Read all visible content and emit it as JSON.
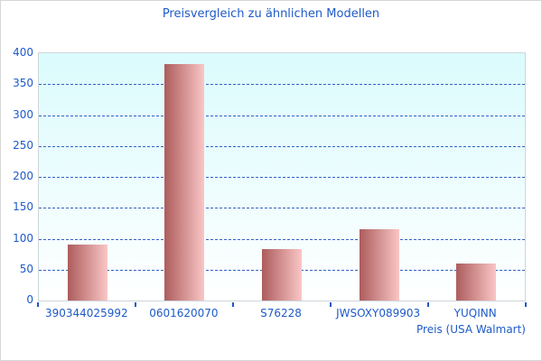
{
  "title": "Preisvergleich zu ähnlichen Modellen",
  "chart_data": {
    "type": "bar",
    "categories": [
      "390344025992",
      "0601620070",
      "S76228",
      "JWSOXY089903",
      "YUQINN"
    ],
    "values": [
      90,
      383,
      83,
      115,
      60
    ],
    "title": "Preisvergleich zu ähnlichen Modellen",
    "xlabel": "Preis (USA Walmart)",
    "ylabel": "",
    "ylim": [
      0,
      400
    ],
    "ytick_step": 50,
    "yticks": [
      0,
      50,
      100,
      150,
      200,
      250,
      300,
      350,
      400
    ],
    "grid": "horizontal-dashed",
    "legend": "none",
    "colors": {
      "bar_gradient_left": "#ad5c5c",
      "bar_gradient_right": "#fac6c6",
      "axis_text": "#1e5ac8",
      "gridline": "#3161c6",
      "plot_bg_top": "#dbfbfc",
      "plot_bg_bottom": "#ffffff",
      "plot_border": "#ccd6da",
      "canvas_border": "#d6d6d6"
    }
  }
}
